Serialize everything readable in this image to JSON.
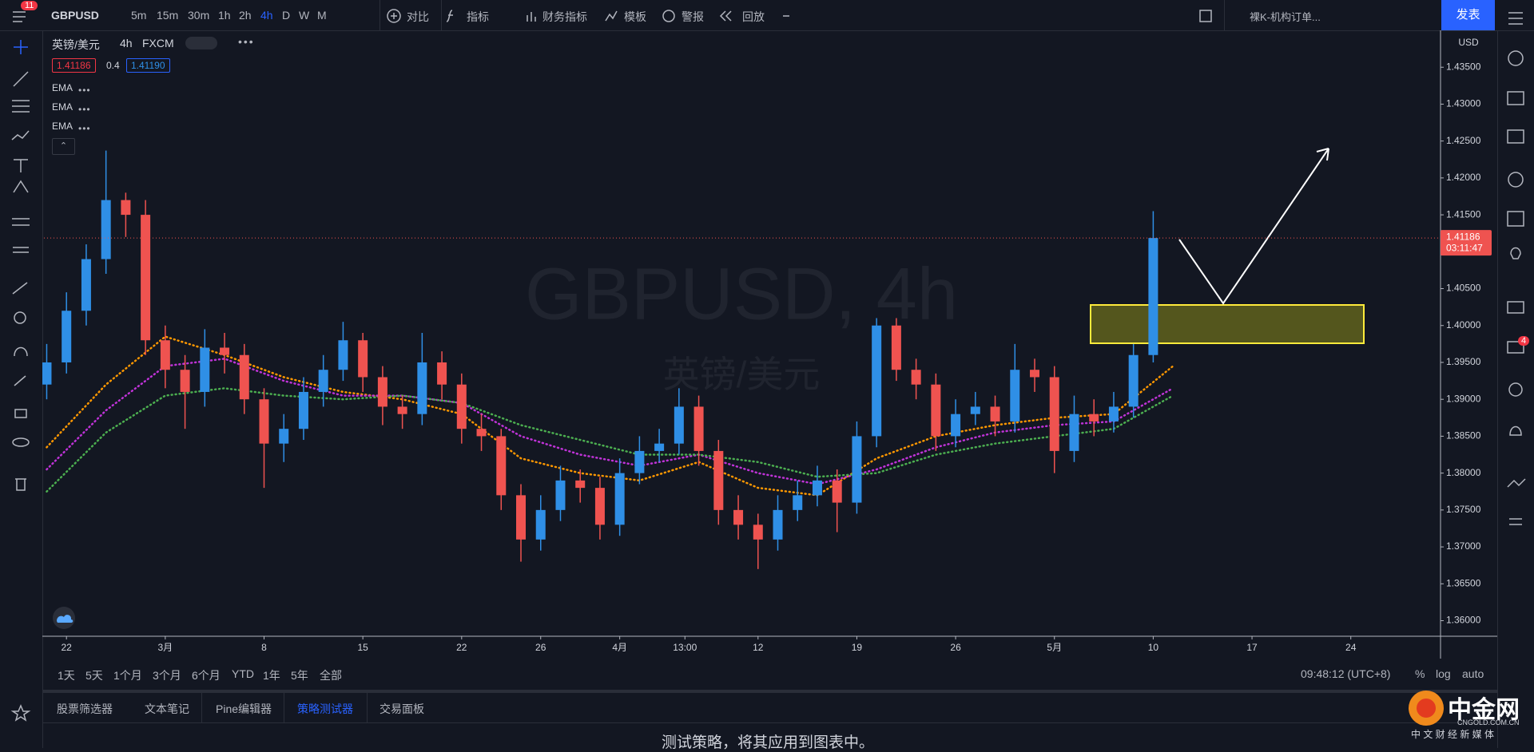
{
  "toolbar": {
    "badge": "11",
    "symbol": "GBPUSD",
    "intervals": [
      "5m",
      "15m",
      "30m",
      "1h",
      "2h",
      "4h",
      "D",
      "W",
      "M"
    ],
    "buttons": [
      "对比",
      "指标",
      "财务指标",
      "模板",
      "警报",
      "回放"
    ],
    "layout_name": "裸K-机构订单...",
    "publish": "发表"
  },
  "symbol_legend": {
    "name": "英镑/美元",
    "interval": "4h",
    "source": "FXCM",
    "bid": "1.41186",
    "spread": "0.4",
    "ask": "1.41190"
  },
  "chart_data": {
    "type": "candlestick",
    "currency": "USD",
    "watermark": {
      "title": "GBPUSD, 4h",
      "subtitle": "英镑/美元"
    },
    "up_color": "#2f8fe6",
    "down_color": "#ef5350",
    "grid": false,
    "x": [
      -1,
      0,
      1,
      2,
      3,
      4,
      5,
      6,
      7,
      8,
      9,
      10,
      11,
      12,
      13,
      14,
      15,
      16,
      17,
      18,
      19,
      20,
      21,
      22,
      23,
      24,
      25,
      26,
      27,
      28,
      29,
      30,
      31,
      32,
      33,
      34,
      35,
      36,
      37,
      38,
      39,
      40,
      41,
      42,
      43,
      44,
      45,
      46,
      47,
      48,
      49,
      50,
      51,
      52,
      53,
      54,
      55
    ],
    "open": [
      1.392,
      1.395,
      1.402,
      1.409,
      1.417,
      1.415,
      1.398,
      1.394,
      1.391,
      1.397,
      1.396,
      1.39,
      1.384,
      1.386,
      1.391,
      1.394,
      1.398,
      1.393,
      1.389,
      1.388,
      1.395,
      1.392,
      1.386,
      1.385,
      1.377,
      1.371,
      1.375,
      1.379,
      1.378,
      1.373,
      1.38,
      1.383,
      1.384,
      1.389,
      1.383,
      1.375,
      1.373,
      1.371,
      1.375,
      1.377,
      1.379,
      1.376,
      1.385,
      1.4,
      1.394,
      1.392,
      1.385,
      1.388,
      1.389,
      1.387,
      1.394,
      1.393,
      1.383,
      1.388,
      1.387,
      1.389,
      1.396
    ],
    "high": [
      1.3975,
      1.4045,
      1.411,
      1.4237,
      1.418,
      1.417,
      1.4,
      1.396,
      1.3995,
      1.399,
      1.3975,
      1.3915,
      1.388,
      1.393,
      1.396,
      1.4005,
      1.399,
      1.3945,
      1.3905,
      1.399,
      1.3965,
      1.3935,
      1.388,
      1.386,
      1.3785,
      1.377,
      1.381,
      1.3805,
      1.3795,
      1.382,
      1.385,
      1.386,
      1.3915,
      1.3905,
      1.3845,
      1.377,
      1.3745,
      1.377,
      1.379,
      1.381,
      1.3805,
      1.387,
      1.401,
      1.401,
      1.3955,
      1.3935,
      1.39,
      1.391,
      1.3905,
      1.3975,
      1.3955,
      1.3945,
      1.3905,
      1.39,
      1.391,
      1.3975,
      1.4155
    ],
    "low": [
      1.39,
      1.3935,
      1.4,
      1.407,
      1.412,
      1.396,
      1.3915,
      1.386,
      1.389,
      1.3935,
      1.388,
      1.378,
      1.3815,
      1.3845,
      1.389,
      1.3925,
      1.391,
      1.3865,
      1.386,
      1.3865,
      1.39,
      1.384,
      1.383,
      1.375,
      1.368,
      1.3695,
      1.3735,
      1.376,
      1.371,
      1.3715,
      1.3785,
      1.3815,
      1.3825,
      1.381,
      1.373,
      1.371,
      1.367,
      1.3695,
      1.3735,
      1.3755,
      1.372,
      1.3745,
      1.3835,
      1.3925,
      1.39,
      1.383,
      1.3835,
      1.3865,
      1.385,
      1.3855,
      1.391,
      1.38,
      1.3815,
      1.385,
      1.3855,
      1.3875,
      1.395
    ],
    "close": [
      1.395,
      1.402,
      1.409,
      1.417,
      1.415,
      1.398,
      1.394,
      1.391,
      1.397,
      1.396,
      1.39,
      1.384,
      1.386,
      1.391,
      1.394,
      1.398,
      1.393,
      1.389,
      1.388,
      1.395,
      1.392,
      1.386,
      1.385,
      1.377,
      1.371,
      1.375,
      1.379,
      1.378,
      1.373,
      1.38,
      1.383,
      1.384,
      1.389,
      1.383,
      1.375,
      1.373,
      1.371,
      1.375,
      1.377,
      1.379,
      1.376,
      1.385,
      1.4,
      1.394,
      1.392,
      1.385,
      1.388,
      1.389,
      1.387,
      1.394,
      1.393,
      1.383,
      1.388,
      1.387,
      1.389,
      1.396,
      1.41186
    ],
    "overlays": [
      {
        "name": "EMA",
        "color": "#ff9800",
        "x": [
          -1,
          2,
          5,
          8,
          11,
          14,
          17,
          20,
          23,
          26,
          29,
          32,
          35,
          38,
          41,
          44,
          47,
          50,
          53,
          56
        ],
        "values": [
          1.3835,
          1.392,
          1.3985,
          1.396,
          1.393,
          1.391,
          1.39,
          1.388,
          1.382,
          1.38,
          1.379,
          1.3815,
          1.378,
          1.377,
          1.382,
          1.385,
          1.3865,
          1.3875,
          1.388,
          1.3945
        ]
      },
      {
        "name": "EMA",
        "color": "#c033d8",
        "x": [
          -1,
          2,
          5,
          8,
          11,
          14,
          17,
          20,
          23,
          26,
          29,
          32,
          35,
          38,
          41,
          44,
          47,
          50,
          53,
          56
        ],
        "values": [
          1.3805,
          1.3885,
          1.3945,
          1.3955,
          1.3925,
          1.3905,
          1.3905,
          1.3895,
          1.385,
          1.3825,
          1.381,
          1.3825,
          1.38,
          1.3785,
          1.3805,
          1.3835,
          1.3855,
          1.3865,
          1.387,
          1.3915
        ]
      },
      {
        "name": "EMA",
        "color": "#4caf50",
        "x": [
          -1,
          2,
          5,
          8,
          11,
          14,
          17,
          20,
          23,
          26,
          29,
          32,
          35,
          38,
          41,
          44,
          47,
          50,
          53,
          56
        ],
        "values": [
          1.3775,
          1.3855,
          1.3905,
          1.3915,
          1.3905,
          1.39,
          1.3905,
          1.3895,
          1.3865,
          1.3845,
          1.3825,
          1.3825,
          1.3815,
          1.3795,
          1.38,
          1.3825,
          1.384,
          1.385,
          1.386,
          1.3905
        ]
      }
    ],
    "last_price": {
      "value": 1.41186,
      "label": "1.41186"
    },
    "countdown": "03:11:47",
    "xlim": [
      -1.14,
      69.5
    ],
    "xticks": [
      {
        "value": 0,
        "label": "22"
      },
      {
        "value": 5,
        "label": "3月"
      },
      {
        "value": 10,
        "label": "8"
      },
      {
        "value": 15,
        "label": "15"
      },
      {
        "value": 20,
        "label": "22"
      },
      {
        "value": 24,
        "label": "26"
      },
      {
        "value": 28,
        "label": "4月"
      },
      {
        "value": 31.3,
        "label": "13:00"
      },
      {
        "value": 35,
        "label": "12"
      },
      {
        "value": 40,
        "label": "19"
      },
      {
        "value": 45,
        "label": "26"
      },
      {
        "value": 50,
        "label": "5月"
      },
      {
        "value": 55,
        "label": "10"
      },
      {
        "value": 60,
        "label": "17"
      },
      {
        "value": 65,
        "label": "24"
      }
    ],
    "ylim": [
      1.358,
      1.44
    ],
    "yticks": [
      {
        "value": 1.36,
        "label": "1.36000"
      },
      {
        "value": 1.365,
        "label": "1.36500"
      },
      {
        "value": 1.37,
        "label": "1.37000"
      },
      {
        "value": 1.375,
        "label": "1.37500"
      },
      {
        "value": 1.38,
        "label": "1.38000"
      },
      {
        "value": 1.385,
        "label": "1.38500"
      },
      {
        "value": 1.39,
        "label": "1.39000"
      },
      {
        "value": 1.395,
        "label": "1.39500"
      },
      {
        "value": 1.4,
        "label": "1.40000"
      },
      {
        "value": 1.405,
        "label": "1.40500"
      },
      {
        "value": 1.41,
        "label": "1.41000"
      },
      {
        "value": 1.415,
        "label": "1.41500"
      },
      {
        "value": 1.42,
        "label": "1.42000"
      },
      {
        "value": 1.425,
        "label": "1.42500"
      },
      {
        "value": 1.43,
        "label": "1.43000"
      },
      {
        "value": 1.435,
        "label": "1.43500"
      }
    ]
  },
  "range_bar": {
    "ranges": [
      "1天",
      "5天",
      "1个月",
      "3个月",
      "6个月",
      "YTD",
      "1年",
      "5年",
      "全部"
    ],
    "clock": "09:48:12 (UTC+8)",
    "options": [
      "%",
      "log",
      "auto"
    ]
  },
  "bottom_tabs": [
    "股票筛选器",
    "文本笔记",
    "Pine编辑器",
    "策略测试器",
    "交易面板"
  ],
  "panel_text": "测试策略，将其应用到图表中。",
  "sidebar_badge": "4",
  "logo": {
    "name": "中金网",
    "url": "CNGOLD.COM.CN",
    "slogan": "中 文 财 经 新 媒 体"
  }
}
